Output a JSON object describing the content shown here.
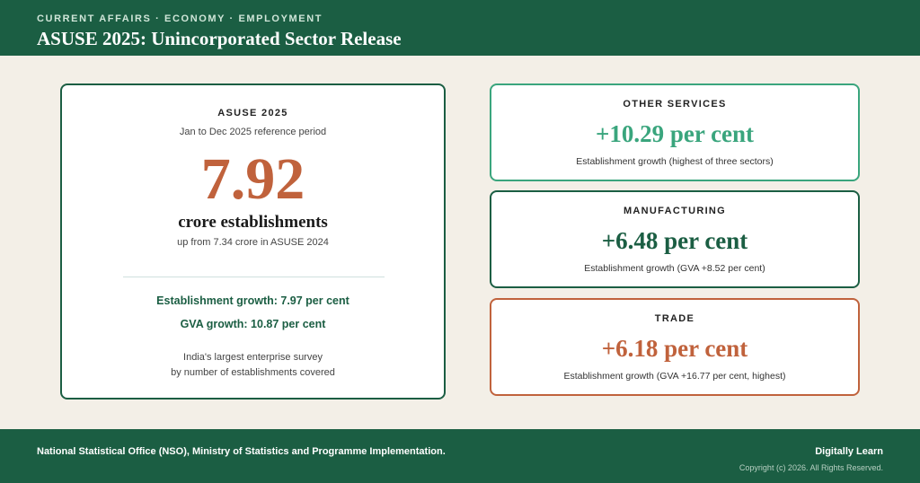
{
  "header": {
    "kicker": "CURRENT AFFAIRS · ECONOMY · EMPLOYMENT",
    "title": "ASUSE 2025: Unincorporated Sector Release"
  },
  "main_card": {
    "label": "ASUSE 2025",
    "period": "Jan to Dec 2025 reference period",
    "number": "7.92",
    "unit": "crore establishments",
    "previous": "up from 7.34 crore in ASUSE 2024",
    "establishment_growth": "Establishment growth: 7.97 per cent",
    "gva_growth": "GVA growth: 10.87 per cent",
    "note_line1": "India's largest enterprise survey",
    "note_line2": "by number of establishments covered"
  },
  "sectors": [
    {
      "label": "OTHER SERVICES",
      "value": "+10.29 per cent",
      "description": "Establishment growth (highest of three sectors)"
    },
    {
      "label": "MANUFACTURING",
      "value": "+6.48 per cent",
      "description": "Establishment growth (GVA +8.52 per cent)"
    },
    {
      "label": "TRADE",
      "value": "+6.18 per cent",
      "description": "Establishment growth (GVA +16.77 per cent, highest)"
    }
  ],
  "footer": {
    "source": "National Statistical Office (NSO), Ministry of Statistics and Programme Implementation.",
    "brand": "Digitally Learn",
    "copyright": "Copyright (c) 2026. All Rights Reserved."
  },
  "colors": {
    "primary_green": "#1b5e43",
    "light_green": "#3aa57d",
    "terracotta": "#c0623c",
    "background": "#f3efe7"
  }
}
